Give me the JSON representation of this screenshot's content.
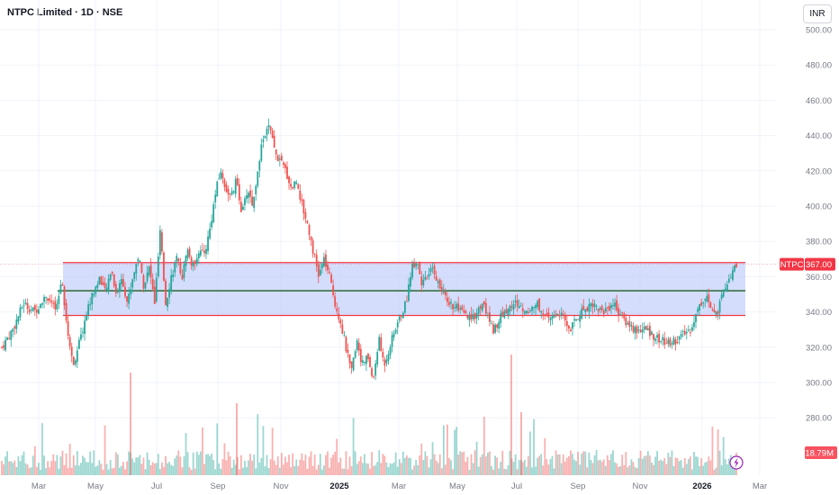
{
  "header": {
    "title": "NTPC Limited · 1D · NSE"
  },
  "currency_button": "INR",
  "price_tag": {
    "symbol": "NTPC",
    "value": "367.00",
    "color": "#f23645"
  },
  "volume_tag": {
    "value": "18.79M",
    "color": "#f7525f"
  },
  "colors": {
    "up": "#26a69a",
    "down": "#ef5350",
    "zone_fill": "#c5d2f9",
    "zone_border": "#f23645",
    "mid_line": "#1b5e20"
  },
  "icons": {
    "bolt": "lightning-icon"
  },
  "chart_data": {
    "type": "candlestick",
    "title": "NTPC Limited · 1D · NSE",
    "y_ticks": [
      "500.00",
      "480.00",
      "460.00",
      "440.00",
      "420.00",
      "400.00",
      "380.00",
      "360.00",
      "340.00",
      "320.00",
      "300.00",
      "280.00"
    ],
    "y_range": [
      265,
      513
    ],
    "x_ticks": [
      {
        "label": "Mar",
        "bold": false
      },
      {
        "label": "May",
        "bold": false
      },
      {
        "label": "Jul",
        "bold": false
      },
      {
        "label": "Sep",
        "bold": false
      },
      {
        "label": "Nov",
        "bold": false
      },
      {
        "label": "2025",
        "bold": true
      },
      {
        "label": "Mar",
        "bold": false
      },
      {
        "label": "May",
        "bold": false
      },
      {
        "label": "Jul",
        "bold": false
      },
      {
        "label": "Sep",
        "bold": false
      },
      {
        "label": "Nov",
        "bold": false
      },
      {
        "label": "2026",
        "bold": true
      },
      {
        "label": "Mar",
        "bold": false
      }
    ],
    "close_path": [
      [
        0,
        320
      ],
      [
        2,
        330
      ],
      [
        4,
        345
      ],
      [
        6,
        340
      ],
      [
        8,
        350
      ],
      [
        10,
        340
      ],
      [
        11,
        360
      ],
      [
        12,
        330
      ],
      [
        13,
        310
      ],
      [
        14,
        320
      ],
      [
        16,
        345
      ],
      [
        18,
        360
      ],
      [
        19,
        350
      ],
      [
        20,
        365
      ],
      [
        21,
        350
      ],
      [
        22,
        360
      ],
      [
        23,
        345
      ],
      [
        24,
        360
      ],
      [
        25,
        372
      ],
      [
        26,
        355
      ],
      [
        27,
        365
      ],
      [
        28,
        345
      ],
      [
        29,
        385
      ],
      [
        30,
        345
      ],
      [
        31,
        360
      ],
      [
        32,
        370
      ],
      [
        33,
        360
      ],
      [
        34,
        375
      ],
      [
        35,
        365
      ],
      [
        36,
        375
      ],
      [
        37,
        372
      ],
      [
        38,
        385
      ],
      [
        39,
        405
      ],
      [
        40,
        420
      ],
      [
        41,
        410
      ],
      [
        42,
        405
      ],
      [
        43,
        415
      ],
      [
        44,
        395
      ],
      [
        45,
        410
      ],
      [
        46,
        400
      ],
      [
        47,
        425
      ],
      [
        48,
        440
      ],
      [
        49,
        445
      ],
      [
        50,
        430
      ],
      [
        51,
        425
      ],
      [
        52,
        420
      ],
      [
        53,
        410
      ],
      [
        54,
        415
      ],
      [
        55,
        400
      ],
      [
        56,
        390
      ],
      [
        57,
        375
      ],
      [
        58,
        360
      ],
      [
        59,
        370
      ],
      [
        60,
        360
      ],
      [
        61,
        345
      ],
      [
        62,
        335
      ],
      [
        63,
        320
      ],
      [
        64,
        305
      ],
      [
        65,
        325
      ],
      [
        66,
        310
      ],
      [
        67,
        315
      ],
      [
        68,
        300
      ],
      [
        69,
        325
      ],
      [
        70,
        310
      ],
      [
        72,
        330
      ],
      [
        74,
        345
      ],
      [
        75,
        365
      ],
      [
        76,
        370
      ],
      [
        77,
        355
      ],
      [
        78,
        360
      ],
      [
        79,
        365
      ],
      [
        80,
        355
      ],
      [
        82,
        345
      ],
      [
        84,
        340
      ],
      [
        86,
        335
      ],
      [
        88,
        345
      ],
      [
        90,
        330
      ],
      [
        92,
        340
      ],
      [
        94,
        345
      ],
      [
        96,
        340
      ],
      [
        98,
        345
      ],
      [
        100,
        335
      ],
      [
        102,
        340
      ],
      [
        104,
        330
      ],
      [
        106,
        340
      ],
      [
        108,
        345
      ],
      [
        110,
        340
      ],
      [
        112,
        345
      ],
      [
        114,
        335
      ],
      [
        116,
        330
      ],
      [
        118,
        330
      ],
      [
        120,
        325
      ],
      [
        122,
        322
      ],
      [
        124,
        325
      ],
      [
        126,
        330
      ],
      [
        128,
        345
      ],
      [
        129,
        350
      ],
      [
        130,
        340
      ],
      [
        131,
        338
      ],
      [
        132,
        350
      ],
      [
        133,
        355
      ],
      [
        134,
        365
      ],
      [
        134.5,
        367
      ]
    ],
    "zone": {
      "top": 368,
      "bottom": 338,
      "mid": 352
    },
    "last_price": 367.0,
    "last_volume": "18.79M"
  }
}
